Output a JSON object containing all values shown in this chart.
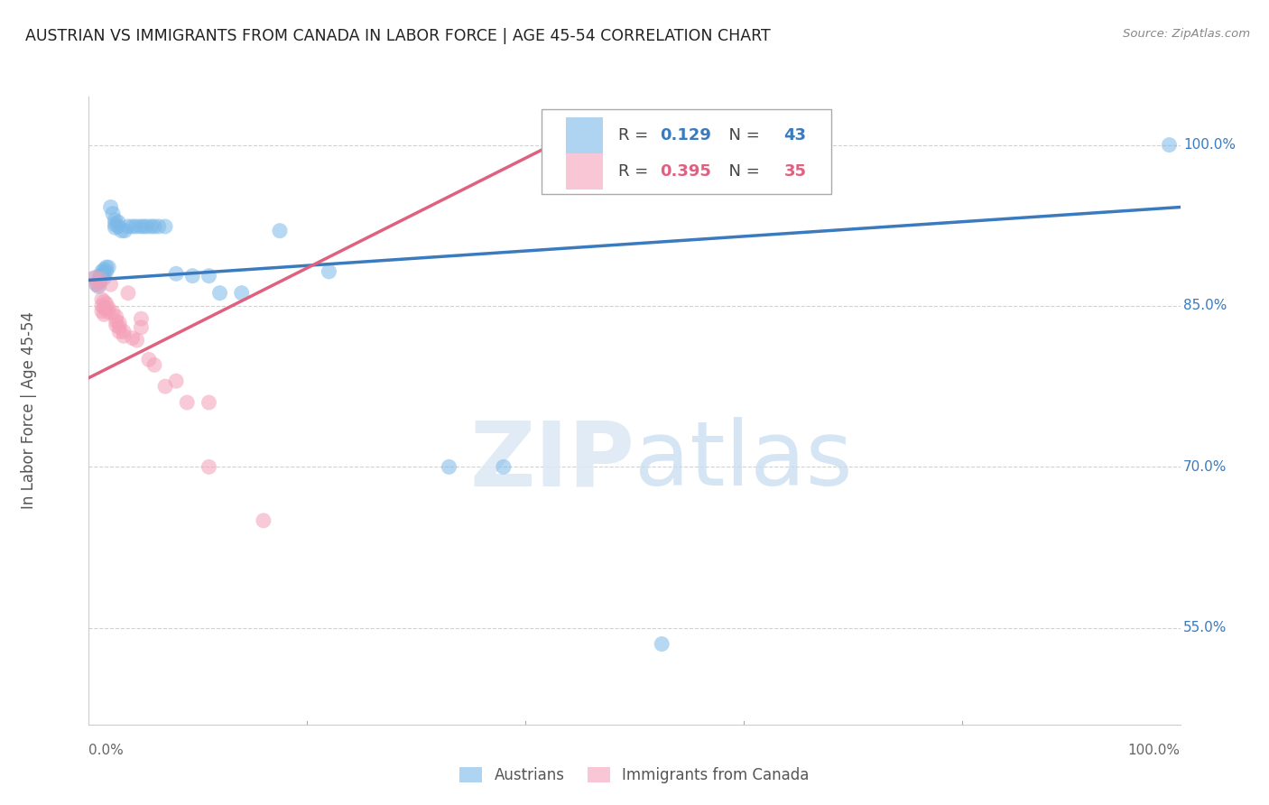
{
  "title": "AUSTRIAN VS IMMIGRANTS FROM CANADA IN LABOR FORCE | AGE 45-54 CORRELATION CHART",
  "source": "Source: ZipAtlas.com",
  "ylabel": "In Labor Force | Age 45-54",
  "xlim": [
    0.0,
    1.0
  ],
  "ylim": [
    0.46,
    1.045
  ],
  "ytick_positions": [
    0.55,
    0.7,
    0.85,
    1.0
  ],
  "ytick_labels": [
    "55.0%",
    "70.0%",
    "85.0%",
    "100.0%"
  ],
  "grid_color": "#cccccc",
  "blue_color": "#7ab8e8",
  "pink_color": "#f4a0b8",
  "blue_line_color": "#3a7abf",
  "pink_line_color": "#e06080",
  "legend1": "Austrians",
  "legend2": "Immigrants from Canada",
  "watermark_zip": "ZIP",
  "watermark_atlas": "atlas",
  "blue_points": [
    [
      0.005,
      0.876
    ],
    [
      0.007,
      0.87
    ],
    [
      0.009,
      0.868
    ],
    [
      0.01,
      0.878
    ],
    [
      0.01,
      0.875
    ],
    [
      0.01,
      0.873
    ],
    [
      0.012,
      0.882
    ],
    [
      0.012,
      0.878
    ],
    [
      0.014,
      0.884
    ],
    [
      0.014,
      0.88
    ],
    [
      0.014,
      0.876
    ],
    [
      0.016,
      0.886
    ],
    [
      0.016,
      0.882
    ],
    [
      0.018,
      0.886
    ],
    [
      0.02,
      0.942
    ],
    [
      0.022,
      0.936
    ],
    [
      0.024,
      0.93
    ],
    [
      0.024,
      0.926
    ],
    [
      0.024,
      0.923
    ],
    [
      0.027,
      0.928
    ],
    [
      0.027,
      0.924
    ],
    [
      0.03,
      0.92
    ],
    [
      0.033,
      0.92
    ],
    [
      0.036,
      0.924
    ],
    [
      0.04,
      0.924
    ],
    [
      0.043,
      0.924
    ],
    [
      0.047,
      0.924
    ],
    [
      0.05,
      0.924
    ],
    [
      0.053,
      0.924
    ],
    [
      0.057,
      0.924
    ],
    [
      0.06,
      0.924
    ],
    [
      0.064,
      0.924
    ],
    [
      0.07,
      0.924
    ],
    [
      0.08,
      0.88
    ],
    [
      0.095,
      0.878
    ],
    [
      0.11,
      0.878
    ],
    [
      0.12,
      0.862
    ],
    [
      0.14,
      0.862
    ],
    [
      0.175,
      0.92
    ],
    [
      0.22,
      0.882
    ],
    [
      0.33,
      0.7
    ],
    [
      0.38,
      0.7
    ],
    [
      0.525,
      0.535
    ],
    [
      0.99,
      1.0
    ]
  ],
  "pink_points": [
    [
      0.005,
      0.876
    ],
    [
      0.007,
      0.87
    ],
    [
      0.01,
      0.875
    ],
    [
      0.01,
      0.87
    ],
    [
      0.012,
      0.856
    ],
    [
      0.012,
      0.85
    ],
    [
      0.012,
      0.845
    ],
    [
      0.014,
      0.854
    ],
    [
      0.014,
      0.848
    ],
    [
      0.014,
      0.842
    ],
    [
      0.016,
      0.852
    ],
    [
      0.016,
      0.847
    ],
    [
      0.018,
      0.848
    ],
    [
      0.018,
      0.844
    ],
    [
      0.02,
      0.87
    ],
    [
      0.022,
      0.844
    ],
    [
      0.025,
      0.84
    ],
    [
      0.025,
      0.836
    ],
    [
      0.025,
      0.832
    ],
    [
      0.028,
      0.834
    ],
    [
      0.028,
      0.83
    ],
    [
      0.028,
      0.826
    ],
    [
      0.032,
      0.826
    ],
    [
      0.032,
      0.822
    ],
    [
      0.036,
      0.862
    ],
    [
      0.04,
      0.82
    ],
    [
      0.044,
      0.818
    ],
    [
      0.048,
      0.838
    ],
    [
      0.048,
      0.83
    ],
    [
      0.055,
      0.8
    ],
    [
      0.06,
      0.795
    ],
    [
      0.07,
      0.775
    ],
    [
      0.08,
      0.78
    ],
    [
      0.09,
      0.76
    ],
    [
      0.11,
      0.76
    ],
    [
      0.11,
      0.7
    ],
    [
      0.16,
      0.65
    ]
  ],
  "blue_line_x": [
    0.0,
    1.0
  ],
  "blue_line_y": [
    0.874,
    0.942
  ],
  "pink_line_x": [
    0.0,
    0.43
  ],
  "pink_line_y": [
    0.783,
    1.003
  ]
}
